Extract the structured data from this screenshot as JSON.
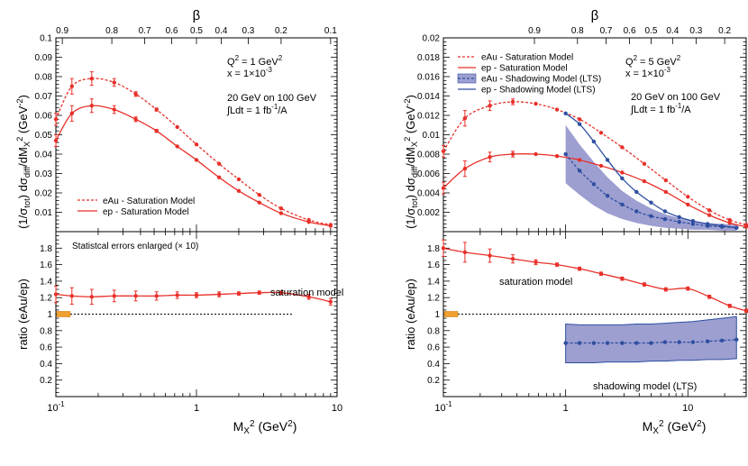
{
  "chart_data": [
    {
      "type": "line",
      "panel": "left",
      "xscale": "log",
      "xlim": [
        0.1,
        10
      ],
      "ylim_top": [
        0,
        0.1
      ],
      "ylim_bottom": [
        0,
        2
      ],
      "top_axis_label": "β",
      "top_ticks": [
        "0.9",
        "0.8",
        "0.7",
        "0.6",
        "0.5",
        "0.4",
        "0.3",
        "0.2",
        "0.1"
      ],
      "top_tick_values": [
        0.9,
        0.8,
        0.7,
        0.6,
        0.5,
        0.4,
        0.3,
        0.2,
        0.1
      ],
      "x_ticks": [
        "10⁻¹",
        "1",
        "10"
      ],
      "y_ticks_top": [
        "0.01",
        "0.02",
        "0.03",
        "0.04",
        "0.05",
        "0.06",
        "0.07",
        "0.08",
        "0.09",
        "0.1"
      ],
      "y_ticks_bottom": [
        "0.2",
        "0.4",
        "0.6",
        "0.8",
        "1",
        "1.2",
        "1.4",
        "1.6",
        "1.8"
      ],
      "ylabel_top": "(1/σtot)  dσdiff/dMX2 (GeV-2)",
      "ylabel_bottom": "ratio (eAu/ep)",
      "xlabel": "MX2 (GeV2)",
      "annotation_top": [
        "Q² = 1 GeV²",
        "x = 1×10⁻³",
        "20 GeV on 100 GeV",
        "∫Ldt = 1 fb⁻¹/A"
      ],
      "legend": [
        "eAu - Saturation Model",
        "ep - Saturation Model"
      ],
      "annotation_bottom_note": "Statistcal errors enlarged (× 10)",
      "ratio_label": "saturation model",
      "series": [
        {
          "name": "eAu - Saturation Model",
          "style": "dashed",
          "x": [
            0.1,
            0.13,
            0.18,
            0.26,
            0.37,
            0.52,
            0.73,
            1.0,
            1.45,
            2.0,
            2.8,
            4.0,
            6.3,
            9.0
          ],
          "y": [
            0.058,
            0.075,
            0.079,
            0.077,
            0.071,
            0.063,
            0.054,
            0.045,
            0.035,
            0.027,
            0.019,
            0.012,
            0.006,
            0.0035
          ]
        },
        {
          "name": "ep - Saturation Model",
          "style": "solid",
          "x": [
            0.1,
            0.13,
            0.18,
            0.26,
            0.37,
            0.52,
            0.73,
            1.0,
            1.45,
            2.0,
            2.8,
            4.0,
            6.3,
            9.0
          ],
          "y": [
            0.047,
            0.061,
            0.065,
            0.063,
            0.058,
            0.052,
            0.044,
            0.037,
            0.028,
            0.021,
            0.015,
            0.0095,
            0.005,
            0.003
          ]
        }
      ],
      "ratio_series": {
        "name": "saturation model",
        "x": [
          0.1,
          0.13,
          0.18,
          0.26,
          0.37,
          0.52,
          0.73,
          1.0,
          1.45,
          2.0,
          2.8,
          4.0,
          6.3,
          9.0
        ],
        "y": [
          1.24,
          1.22,
          1.21,
          1.22,
          1.22,
          1.22,
          1.23,
          1.23,
          1.24,
          1.25,
          1.26,
          1.26,
          1.21,
          1.15
        ],
        "err": [
          0.1,
          0.1,
          0.09,
          0.07,
          0.06,
          0.05,
          0.04,
          0.03,
          0.03,
          0.02,
          0.02,
          0.02,
          0.03,
          0.04
        ]
      }
    },
    {
      "type": "line",
      "panel": "right",
      "xscale": "log",
      "xlim": [
        0.1,
        30
      ],
      "ylim_top": [
        0,
        0.02
      ],
      "ylim_bottom": [
        0,
        2
      ],
      "top_axis_label": "β",
      "top_ticks": [
        "0.9",
        "0.8",
        "0.7",
        "0.6",
        "0.5",
        "0.4",
        "0.3",
        "0.2"
      ],
      "top_tick_values": [
        0.9,
        0.8,
        0.7,
        0.6,
        0.5,
        0.4,
        0.3,
        0.2
      ],
      "x_ticks": [
        "10⁻¹",
        "1",
        "10"
      ],
      "y_ticks_top": [
        "0.002",
        "0.004",
        "0.006",
        "0.008",
        "0.01",
        "0.012",
        "0.014",
        "0.016",
        "0.018",
        "0.02"
      ],
      "y_ticks_bottom": [
        "0.2",
        "0.4",
        "0.6",
        "0.8",
        "1",
        "1.2",
        "1.4",
        "1.6",
        "1.8"
      ],
      "ylabel_top": "(1/σtot)  dσdiff/dMX2 (GeV-2)",
      "ylabel_bottom": "ratio (eAu/ep)",
      "xlabel": "MX2 (GeV2)",
      "annotation_top": [
        "Q² = 5 GeV²",
        "x = 1×10⁻³",
        "20 GeV on 100 GeV",
        "∫Ldt = 1 fb⁻¹/A"
      ],
      "legend": [
        "eAu - Saturation Model",
        "ep - Saturation Model",
        "eAu - Shadowing Model (LTS)",
        "ep - Shadowing Model (LTS)"
      ],
      "ratio_labels": [
        "saturation model",
        "shadowing model (LTS)"
      ],
      "series": [
        {
          "name": "eAu - Saturation Model",
          "style": "dashed",
          "color": "#e8302a",
          "x": [
            0.1,
            0.15,
            0.24,
            0.37,
            0.57,
            0.85,
            1.3,
            1.95,
            2.9,
            4.4,
            6.6,
            10,
            15,
            22,
            30
          ],
          "y": [
            0.0083,
            0.0117,
            0.013,
            0.0134,
            0.0132,
            0.0126,
            0.0116,
            0.0102,
            0.0087,
            0.007,
            0.0053,
            0.0036,
            0.0022,
            0.0012,
            0.0007
          ]
        },
        {
          "name": "ep - Saturation Model",
          "style": "solid",
          "color": "#e8302a",
          "x": [
            0.1,
            0.15,
            0.24,
            0.37,
            0.57,
            0.85,
            1.3,
            1.95,
            2.9,
            4.4,
            6.6,
            10,
            15,
            22,
            30
          ],
          "y": [
            0.0045,
            0.0065,
            0.0077,
            0.008,
            0.008,
            0.0078,
            0.0074,
            0.0068,
            0.0061,
            0.0052,
            0.0041,
            0.0028,
            0.0017,
            0.0009,
            0.0005
          ]
        },
        {
          "name": "eAu - Shadowing Model (LTS)",
          "style": "dashed",
          "color": "#2e4ea0",
          "x": [
            1,
            1.3,
            1.7,
            2.2,
            2.9,
            3.8,
            5.0,
            6.5,
            8.5,
            11,
            14.5,
            19,
            25
          ],
          "y": [
            0.008,
            0.0063,
            0.0049,
            0.0037,
            0.0028,
            0.0021,
            0.0016,
            0.0013,
            0.001,
            0.0008,
            0.0006,
            0.0005,
            0.0004
          ],
          "band_upper": [
            0.011,
            0.009,
            0.0072,
            0.0056,
            0.0042,
            0.0032,
            0.0024,
            0.0018,
            0.0014,
            0.0011,
            0.0009,
            0.0008,
            0.0007
          ],
          "band_lower": [
            0.005,
            0.0038,
            0.0027,
            0.0019,
            0.0013,
            0.0009,
            0.0006,
            0.0004,
            0.0003,
            0.0002,
            0.0002,
            0.0001,
            0.0001
          ]
        },
        {
          "name": "ep - Shadowing Model (LTS)",
          "style": "solid",
          "color": "#2e4ea0",
          "x": [
            1,
            1.3,
            1.7,
            2.2,
            2.9,
            3.8,
            5.0,
            6.5,
            8.5,
            11,
            14.5,
            19,
            25
          ],
          "y": [
            0.0122,
            0.0111,
            0.0093,
            0.0074,
            0.0055,
            0.0041,
            0.003,
            0.0021,
            0.0015,
            0.0011,
            0.0008,
            0.0006,
            0.0004
          ]
        }
      ],
      "ratio_series": [
        {
          "name": "saturation model",
          "color": "#e8302a",
          "x": [
            0.1,
            0.15,
            0.24,
            0.37,
            0.57,
            0.85,
            1.3,
            1.95,
            2.9,
            4.4,
            6.6,
            10,
            15,
            22,
            30
          ],
          "y": [
            1.8,
            1.75,
            1.71,
            1.67,
            1.63,
            1.6,
            1.55,
            1.49,
            1.43,
            1.36,
            1.3,
            1.31,
            1.21,
            1.1,
            1.04
          ],
          "err": [
            0.1,
            0.12,
            0.08,
            0.05,
            0.03,
            0.02,
            0.02,
            0.02,
            0.02,
            0.02,
            0.02,
            0.02,
            0.02,
            0.02,
            0.02
          ]
        },
        {
          "name": "shadowing model (LTS)",
          "color": "#2e4ea0",
          "x": [
            1,
            1.3,
            1.7,
            2.2,
            2.9,
            3.8,
            5.0,
            6.5,
            8.5,
            11,
            14.5,
            19,
            25
          ],
          "y": [
            0.65,
            0.65,
            0.65,
            0.65,
            0.65,
            0.65,
            0.65,
            0.66,
            0.66,
            0.66,
            0.67,
            0.68,
            0.69
          ],
          "band_upper": [
            0.88,
            0.87,
            0.87,
            0.87,
            0.87,
            0.88,
            0.88,
            0.89,
            0.9,
            0.91,
            0.93,
            0.95,
            0.97
          ],
          "band_lower": [
            0.41,
            0.41,
            0.41,
            0.42,
            0.42,
            0.42,
            0.43,
            0.43,
            0.44,
            0.44,
            0.45,
            0.45,
            0.46
          ]
        }
      ]
    }
  ]
}
